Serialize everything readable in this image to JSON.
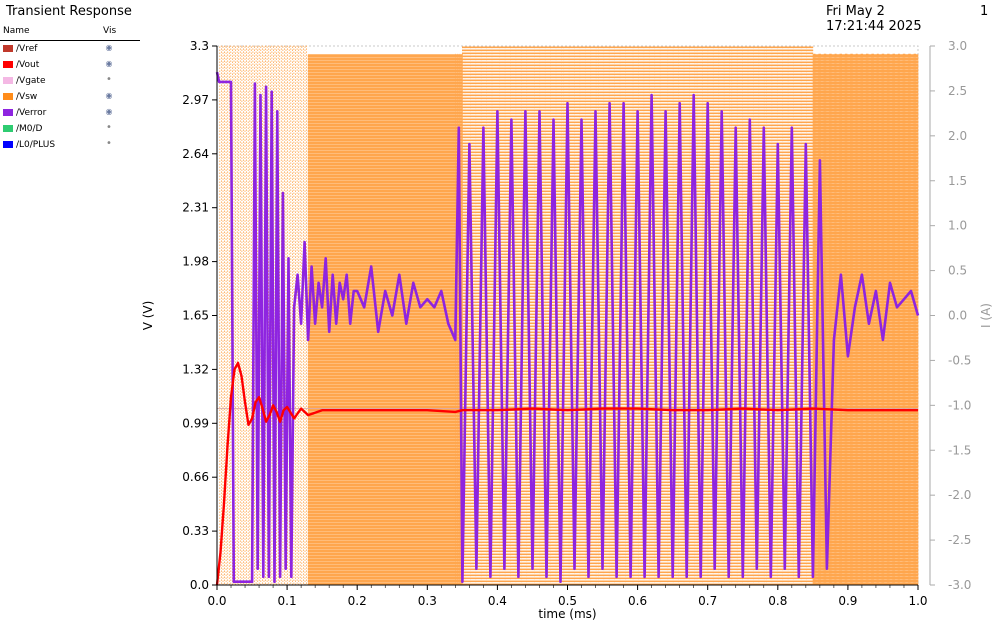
{
  "window": {
    "title": "Transient Response",
    "timestamp": "Fri May 2 17:21:44 2025",
    "page_number": "1"
  },
  "legend": {
    "col_name": "Name",
    "col_vis": "Vis",
    "items": [
      {
        "name": "/Vref",
        "color": "#c0392b",
        "visible": true,
        "vis_glyph": "◉"
      },
      {
        "name": "/Vout",
        "color": "#ff0000",
        "visible": true,
        "vis_glyph": "◉"
      },
      {
        "name": "/Vgate",
        "color": "#f4b8e4",
        "visible": false,
        "vis_glyph": "•"
      },
      {
        "name": "/Vsw",
        "color": "#ff8c1a",
        "visible": true,
        "vis_glyph": "◉"
      },
      {
        "name": "/Verror",
        "color": "#8e24e0",
        "visible": true,
        "vis_glyph": "◉"
      },
      {
        "name": "/M0/D",
        "color": "#2ecc71",
        "visible": false,
        "vis_glyph": "•"
      },
      {
        "name": "/L0/PLUS",
        "color": "#0000ff",
        "visible": false,
        "vis_glyph": "•"
      }
    ]
  },
  "chart_data": {
    "type": "line",
    "title": "Transient Response",
    "xlabel": "time (ms)",
    "ylabel": "V (V)",
    "y2label": "I (A)",
    "xlim": [
      0.0,
      1.0
    ],
    "ylim": [
      0.0,
      3.3
    ],
    "y2lim": [
      -3.0,
      3.0
    ],
    "xticks": [
      "0.0",
      "0.1",
      "0.2",
      "0.3",
      "0.4",
      "0.5",
      "0.6",
      "0.7",
      "0.8",
      "0.9",
      "1.0"
    ],
    "yticks": [
      "0.0",
      "0.33",
      "0.66",
      "0.99",
      "1.32",
      "1.65",
      "1.98",
      "2.31",
      "2.64",
      "2.97",
      "3.3"
    ],
    "y2ticks": [
      "-3.0",
      "-2.5",
      "-2.0",
      "-1.5",
      "-1.0",
      "-0.5",
      "0.0",
      "0.5",
      "1.0",
      "1.5",
      "2.0",
      "2.5",
      "3.0"
    ],
    "reference_line_y": 1.08,
    "colors": {
      "vsw": "#ffa64d",
      "verror": "#8e24e0",
      "vout": "#ff0000",
      "grid": "#c8c8c8",
      "right_axis": "#aaaaaa"
    },
    "series": [
      {
        "name": "/Vout",
        "x": [
          0.0,
          0.005,
          0.01,
          0.015,
          0.02,
          0.025,
          0.03,
          0.035,
          0.04,
          0.045,
          0.05,
          0.055,
          0.06,
          0.065,
          0.07,
          0.075,
          0.08,
          0.085,
          0.09,
          0.095,
          0.1,
          0.11,
          0.12,
          0.13,
          0.15,
          0.2,
          0.25,
          0.3,
          0.34,
          0.35,
          0.4,
          0.45,
          0.5,
          0.55,
          0.6,
          0.65,
          0.7,
          0.75,
          0.8,
          0.85,
          0.9,
          0.95,
          1.0
        ],
        "y": [
          0.0,
          0.2,
          0.5,
          0.85,
          1.15,
          1.32,
          1.36,
          1.28,
          1.12,
          0.98,
          1.02,
          1.12,
          1.15,
          1.08,
          1.0,
          1.04,
          1.1,
          1.06,
          1.0,
          1.07,
          1.09,
          1.02,
          1.08,
          1.04,
          1.07,
          1.07,
          1.07,
          1.07,
          1.06,
          1.07,
          1.07,
          1.08,
          1.07,
          1.08,
          1.08,
          1.07,
          1.07,
          1.08,
          1.07,
          1.08,
          1.07,
          1.07,
          1.07
        ]
      },
      {
        "name": "/Verror",
        "x": [
          0.0,
          0.003,
          0.006,
          0.02,
          0.024,
          0.028,
          0.05,
          0.054,
          0.058,
          0.062,
          0.066,
          0.07,
          0.074,
          0.078,
          0.082,
          0.086,
          0.09,
          0.094,
          0.098,
          0.102,
          0.106,
          0.11,
          0.115,
          0.12,
          0.125,
          0.13,
          0.135,
          0.14,
          0.145,
          0.15,
          0.155,
          0.16,
          0.165,
          0.17,
          0.175,
          0.18,
          0.185,
          0.19,
          0.195,
          0.2,
          0.21,
          0.22,
          0.23,
          0.24,
          0.25,
          0.26,
          0.27,
          0.28,
          0.29,
          0.3,
          0.31,
          0.32,
          0.33,
          0.34,
          0.345,
          0.35,
          0.36,
          0.37,
          0.38,
          0.39,
          0.4,
          0.41,
          0.42,
          0.43,
          0.44,
          0.45,
          0.46,
          0.47,
          0.48,
          0.49,
          0.5,
          0.51,
          0.52,
          0.53,
          0.54,
          0.55,
          0.56,
          0.57,
          0.58,
          0.59,
          0.6,
          0.61,
          0.62,
          0.63,
          0.64,
          0.65,
          0.66,
          0.67,
          0.68,
          0.69,
          0.7,
          0.71,
          0.72,
          0.73,
          0.74,
          0.75,
          0.76,
          0.77,
          0.78,
          0.79,
          0.8,
          0.81,
          0.82,
          0.83,
          0.84,
          0.85,
          0.86,
          0.87,
          0.88,
          0.89,
          0.9,
          0.91,
          0.92,
          0.93,
          0.94,
          0.95,
          0.96,
          0.97,
          0.98,
          0.99,
          1.0
        ],
        "y": [
          3.14,
          3.08,
          3.08,
          3.08,
          0.02,
          0.02,
          0.02,
          3.07,
          0.1,
          3.0,
          0.05,
          3.05,
          0.05,
          3.02,
          0.02,
          2.9,
          0.05,
          2.4,
          0.1,
          2.0,
          0.05,
          1.7,
          1.9,
          1.6,
          2.1,
          1.5,
          1.95,
          1.6,
          1.85,
          1.7,
          2.0,
          1.55,
          1.9,
          1.6,
          1.85,
          1.75,
          1.9,
          1.6,
          1.8,
          1.8,
          1.7,
          1.95,
          1.55,
          1.8,
          1.65,
          1.9,
          1.6,
          1.85,
          1.7,
          1.75,
          1.7,
          1.8,
          1.6,
          1.5,
          2.8,
          0.02,
          2.7,
          0.1,
          2.8,
          0.05,
          2.9,
          0.1,
          2.85,
          0.05,
          2.9,
          0.1,
          2.9,
          0.05,
          2.85,
          0.02,
          2.95,
          0.1,
          2.85,
          0.05,
          2.9,
          0.1,
          2.95,
          0.05,
          2.95,
          0.05,
          2.9,
          0.05,
          3.0,
          0.05,
          2.9,
          0.05,
          2.95,
          0.05,
          3.0,
          0.05,
          2.95,
          0.1,
          2.9,
          0.05,
          2.8,
          0.05,
          2.85,
          0.1,
          2.8,
          0.05,
          2.7,
          0.1,
          2.8,
          0.05,
          2.7,
          0.05,
          2.6,
          0.1,
          1.5,
          1.9,
          1.4,
          1.7,
          1.9,
          1.6,
          1.8,
          1.5,
          1.85,
          1.7,
          1.75,
          1.8,
          1.65
        ]
      },
      {
        "name": "/Vsw",
        "x": [
          0.0,
          0.13,
          0.34,
          0.35,
          0.5,
          0.85,
          1.0
        ],
        "y": [
          3.25,
          3.25,
          3.25,
          3.25,
          3.25,
          3.25,
          3.25
        ],
        "style": "dotted switching envelope 0 to 3.25 V"
      }
    ]
  }
}
